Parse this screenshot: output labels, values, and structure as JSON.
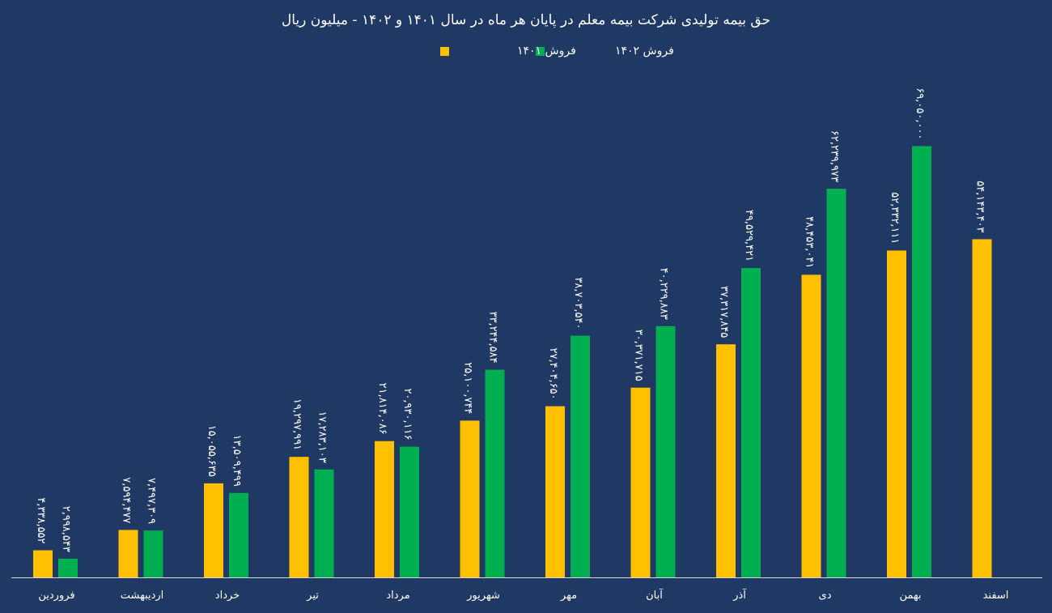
{
  "chart_data": {
    "type": "bar",
    "title": "حق بیمه تولیدی شرکت بیمه معلم در پایان هر ماه در سال ۱۴۰۱ و ۱۴۰۲ - میلیون ریال",
    "xlabel": "",
    "ylabel": "",
    "ylim": [
      0,
      80000000
    ],
    "grid": false,
    "legend_position": "top",
    "categories": [
      "فروردین",
      "اردیبهشت",
      "خرداد",
      "تیر",
      "مرداد",
      "شهریور",
      "مهر",
      "آبان",
      "آذر",
      "دی",
      "بهمن",
      "اسفند"
    ],
    "series": [
      {
        "name": "فروش ۱۴۰۱",
        "color": "#FFC000",
        "values": [
          4338552,
          7594477,
          15055635,
          19297991,
          21814086,
          25100744,
          27404650,
          30371715,
          37317845,
          48453041,
          52332111,
          54143403
        ],
        "labels": [
          "۴,۳۳۸,۵۵۲",
          "۷,۵۹۴,۴۷۷",
          "۱۵,۰۵۵,۶۳۵",
          "۱۹,۲۹۷,۹۹۱",
          "۲۱,۸۱۴,۰۸۶",
          "۲۵,۱۰۰,۷۴۴",
          "۲۷,۴۰۴,۶۵۰",
          "۳۰,۳۷۱,۷۱۵",
          "۳۷,۳۱۷,۸۴۵",
          "۴۸,۴۵۳,۰۴۱",
          "۵۲,۳۳۲,۱۱۱",
          "۵۴,۱۴۳,۴۰۳"
        ]
      },
      {
        "name": "فروش ۱۴۰۲",
        "color": "#00B050",
        "values": [
          2998543,
          7497309,
          13509499,
          17283103,
          20930116,
          33244584,
          38703540,
          40229883,
          49529421,
          62239973,
          69050000,
          null
        ],
        "labels": [
          "۲,۹۹۸,۵۴۳",
          "۷,۴۹۷,۳۰۹",
          "۱۳,۵۰۹,۴۹۹",
          "۱۷,۲۸۳,۱۰۳",
          "۲۰,۹۳۰,۱۱۶",
          "۳۳,۲۴۴,۵۸۴",
          "۳۸,۷۰۳,۵۴۰",
          "۴۰,۲۲۹,۸۸۳",
          "۴۹,۵۲۹,۴۲۱",
          "۶۲,۲۳۹,۹۷۳",
          "۶۹,۰۵۰,۰۰۰",
          null
        ]
      }
    ]
  }
}
